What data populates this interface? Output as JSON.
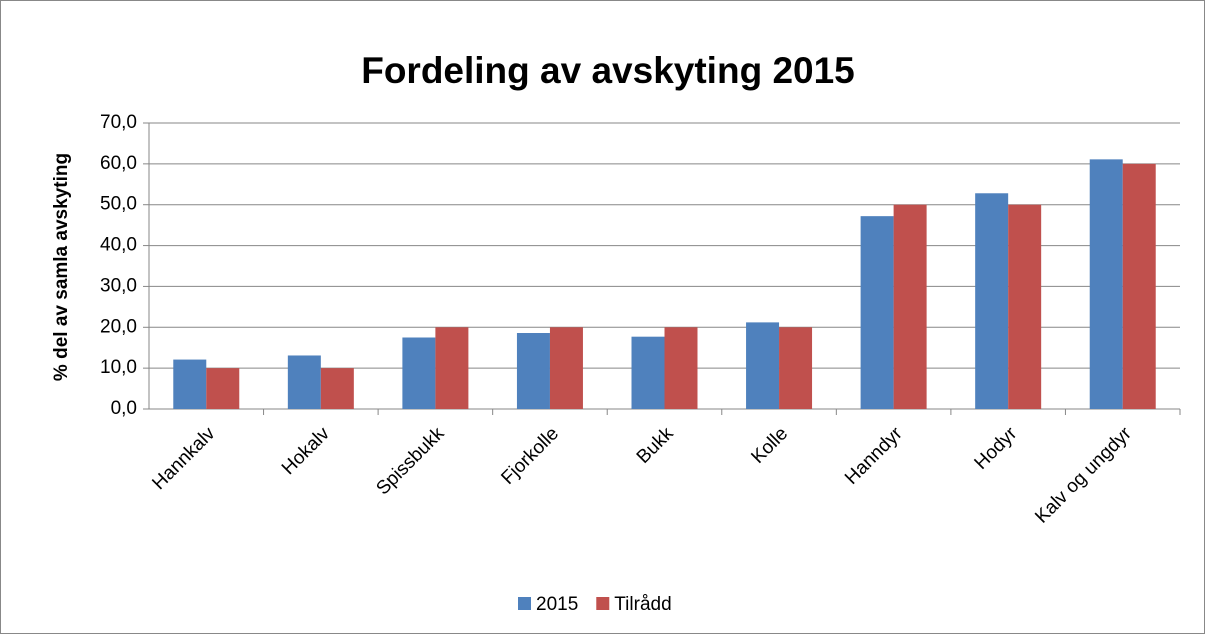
{
  "chart_data": {
    "type": "bar",
    "title": "Fordeling av avskyting 2015",
    "y_label": "% del av samla avskyting",
    "categories": [
      "Hannkalv",
      "Hokalv",
      "Spissbukk",
      "Fjorkolle",
      "Bukk",
      "Kolle",
      "Hanndyr",
      "Hodyr",
      "Kalv og ungdyr"
    ],
    "series": [
      {
        "name": "2015",
        "color": "#4f81bd",
        "values": [
          12.1,
          13.1,
          17.5,
          18.6,
          17.7,
          21.2,
          47.2,
          52.8,
          61.1
        ]
      },
      {
        "name": "Tilrådd",
        "color": "#c0504d",
        "values": [
          10,
          10,
          20,
          20,
          20,
          20,
          50,
          50,
          60
        ]
      }
    ],
    "ylim": [
      0,
      70
    ],
    "yticks": [
      {
        "value": 0,
        "label": "0,0"
      },
      {
        "value": 10,
        "label": "10,0"
      },
      {
        "value": 20,
        "label": "20,0"
      },
      {
        "value": 30,
        "label": "30,0"
      },
      {
        "value": 40,
        "label": "40,0"
      },
      {
        "value": 50,
        "label": "50,0"
      },
      {
        "value": 60,
        "label": "60,0"
      },
      {
        "value": 70,
        "label": "70,0"
      }
    ],
    "grid": true
  }
}
